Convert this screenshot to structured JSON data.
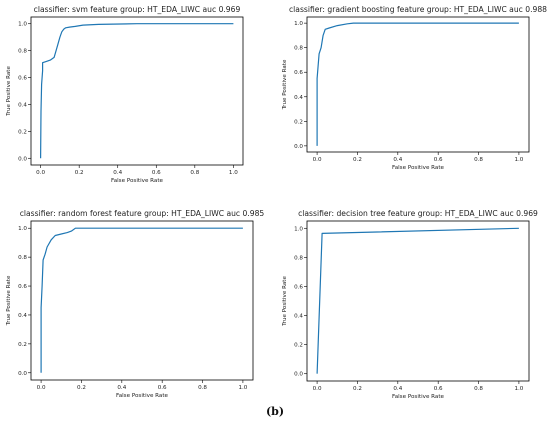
{
  "caption": "(b)",
  "chart_data": [
    {
      "type": "line",
      "title": "classifier: svm feature group: HT_EDA_LIWC auc 0.969",
      "xlabel": "False Positive Rate",
      "ylabel": "True Positive Rate",
      "xlim": [
        0,
        1
      ],
      "ylim": [
        0,
        1
      ],
      "xticks": [
        "0.0",
        "0.2",
        "0.4",
        "0.6",
        "0.8",
        "1.0"
      ],
      "yticks": [
        "0.0",
        "0.2",
        "0.4",
        "0.6",
        "0.8",
        "1.0"
      ],
      "grid": false,
      "color": "#1f77b4",
      "x": [
        0,
        0.002,
        0.005,
        0.01,
        0.01,
        0.03,
        0.05,
        0.07,
        0.08,
        0.09,
        0.1,
        0.11,
        0.12,
        0.13,
        0.15,
        0.18,
        0.22,
        0.3,
        0.5,
        1.0
      ],
      "y": [
        0,
        0.35,
        0.55,
        0.65,
        0.71,
        0.72,
        0.73,
        0.75,
        0.8,
        0.85,
        0.9,
        0.94,
        0.96,
        0.97,
        0.975,
        0.98,
        0.99,
        0.995,
        1.0,
        1.0
      ]
    },
    {
      "type": "line",
      "title": "classifier: gradient boosting feature group: HT_EDA_LIWC auc 0.988",
      "xlabel": "False Positive Rate",
      "ylabel": "True Positive Rate",
      "xlim": [
        0,
        1
      ],
      "ylim": [
        0,
        1
      ],
      "xticks": [
        "0.0",
        "0.2",
        "0.4",
        "0.6",
        "0.8",
        "1.0"
      ],
      "yticks": [
        "0.0",
        "0.2",
        "0.4",
        "0.6",
        "0.8",
        "1.0"
      ],
      "grid": false,
      "color": "#1f77b4",
      "x": [
        0,
        0,
        0.005,
        0.01,
        0.02,
        0.03,
        0.04,
        0.06,
        0.1,
        0.15,
        0.18,
        0.3,
        1.0
      ],
      "y": [
        0,
        0.55,
        0.65,
        0.75,
        0.8,
        0.9,
        0.95,
        0.96,
        0.98,
        0.995,
        1.0,
        1.0,
        1.0
      ]
    },
    {
      "type": "line",
      "title": "classifier: random forest feature group: HT_EDA_LIWC auc 0.985",
      "xlabel": "False Positive Rate",
      "ylabel": "True Positive Rate",
      "xlim": [
        0,
        1
      ],
      "ylim": [
        0,
        1
      ],
      "xticks": [
        "0.0",
        "0.2",
        "0.4",
        "0.6",
        "0.8",
        "1.0"
      ],
      "yticks": [
        "0.0",
        "0.2",
        "0.4",
        "0.6",
        "0.8",
        "1.0"
      ],
      "grid": false,
      "color": "#1f77b4",
      "x": [
        0,
        0,
        0.005,
        0.01,
        0.02,
        0.03,
        0.05,
        0.07,
        0.1,
        0.13,
        0.15,
        0.17,
        0.2,
        0.5,
        1.0
      ],
      "y": [
        0,
        0.45,
        0.6,
        0.78,
        0.82,
        0.87,
        0.92,
        0.95,
        0.96,
        0.97,
        0.98,
        1.0,
        1.0,
        1.0,
        1.0
      ]
    },
    {
      "type": "line",
      "title": "classifier: decision tree feature group: HT_EDA_LIWC auc 0.969",
      "xlabel": "False Positive Rate",
      "ylabel": "True Positive Rate",
      "xlim": [
        0,
        1
      ],
      "ylim": [
        0,
        1
      ],
      "xticks": [
        "0.0",
        "0.2",
        "0.4",
        "0.6",
        "0.8",
        "1.0"
      ],
      "yticks": [
        "0.0",
        "0.2",
        "0.4",
        "0.6",
        "0.8",
        "1.0"
      ],
      "grid": false,
      "color": "#1f77b4",
      "x": [
        0,
        0.025,
        1.0
      ],
      "y": [
        0,
        0.965,
        1.0
      ]
    }
  ]
}
